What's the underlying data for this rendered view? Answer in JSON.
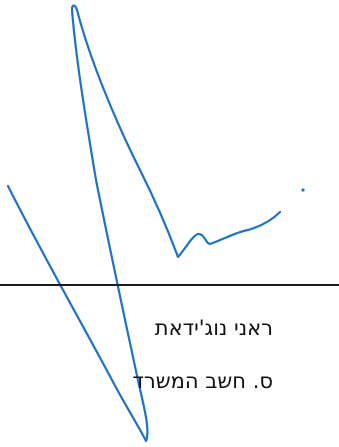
{
  "signature_block": {
    "signer_name": "ראני נוג'ידאת",
    "signer_title": "ס. חשב המשרד",
    "ink_color": "#1f72c4",
    "line_color": "#1a1a1a"
  }
}
